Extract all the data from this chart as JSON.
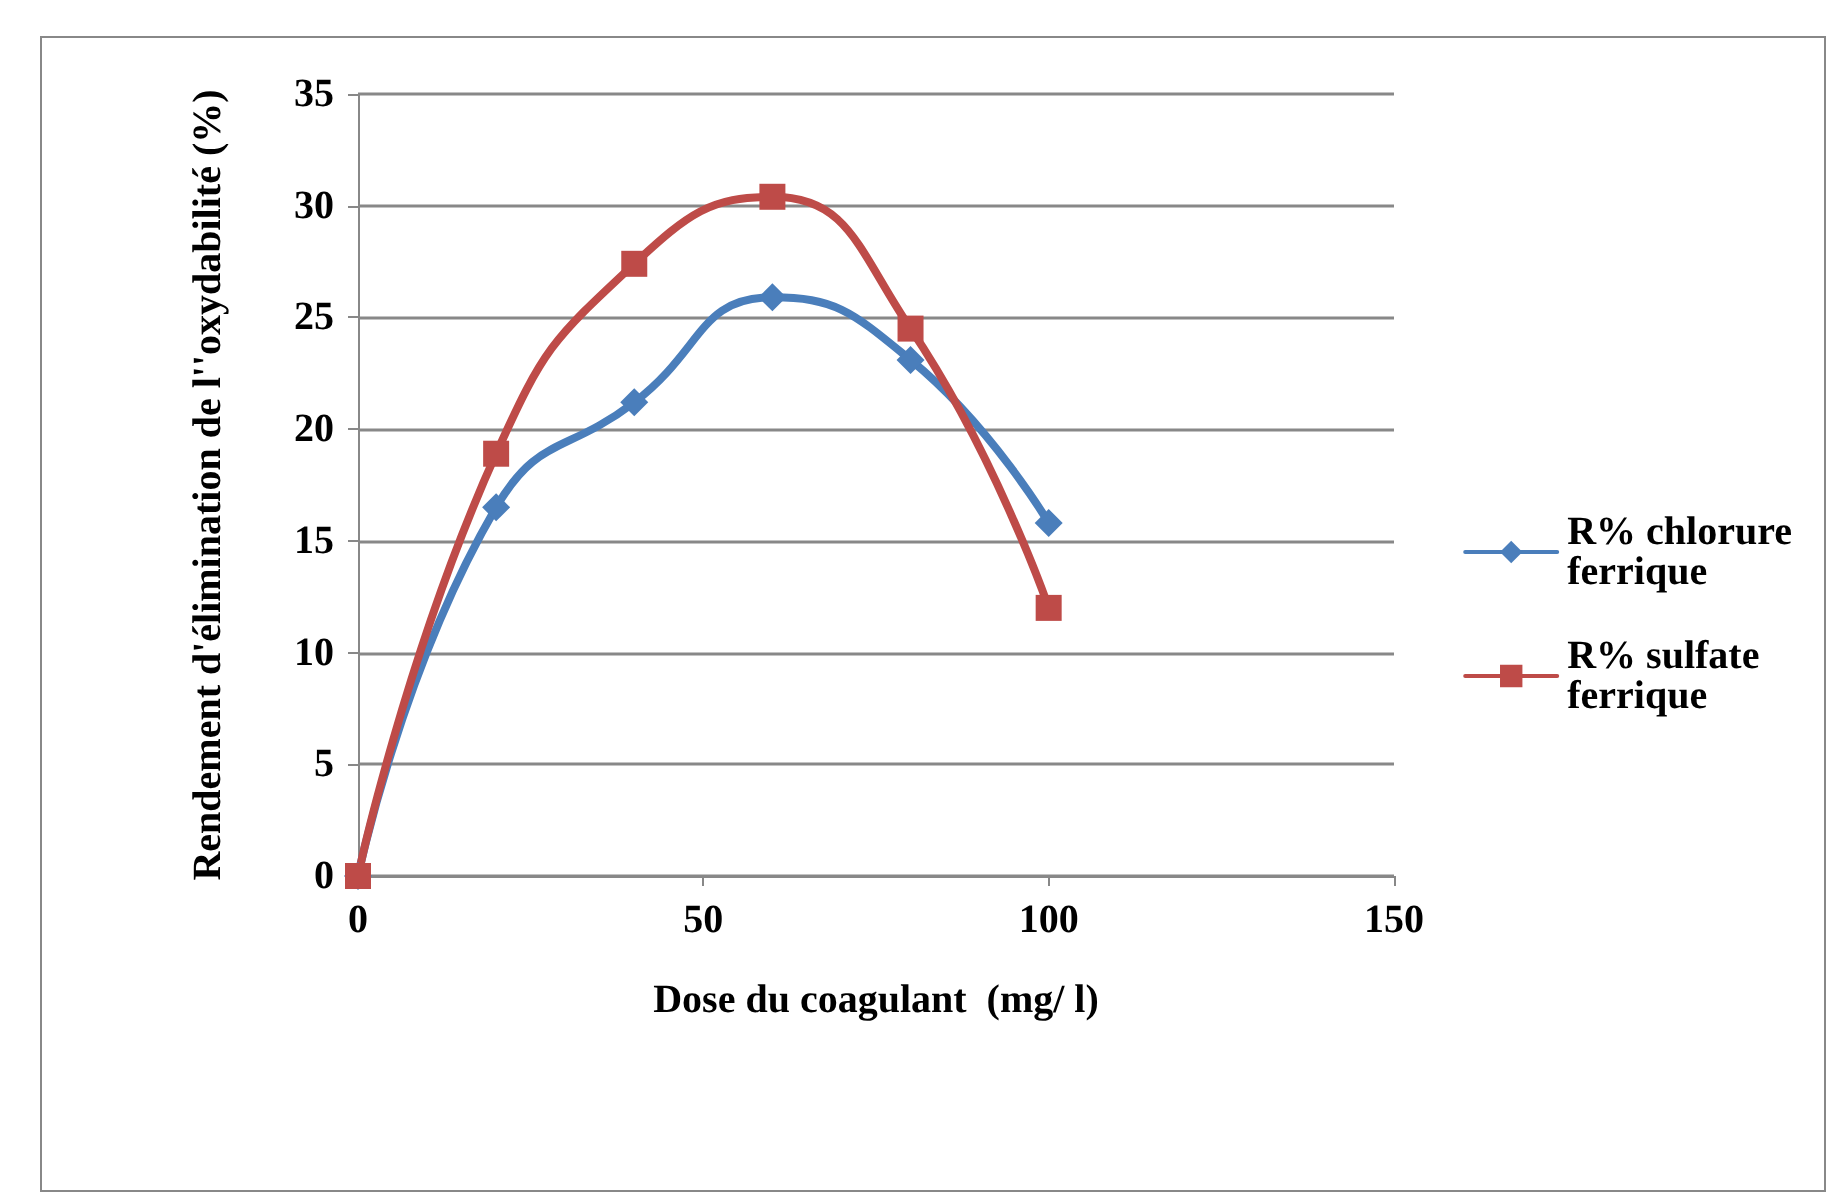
{
  "chart_data": {
    "type": "line",
    "xlabel": "Dose du coagulant  (mg/ l)",
    "ylabel": "Rendement d'élimination de l''oxydabilité (%)",
    "x": [
      0,
      20,
      40,
      60,
      80,
      100
    ],
    "series": [
      {
        "name": "R% chlorure ferrique",
        "color": "#4a7ebb",
        "marker": "diamond",
        "values": [
          0,
          16.5,
          21.2,
          25.9,
          23.1,
          15.8
        ]
      },
      {
        "name": "R% sulfate ferrique",
        "color": "#be4b48",
        "marker": "square",
        "values": [
          0,
          18.9,
          27.4,
          30.4,
          24.5,
          12.0
        ]
      }
    ],
    "xlim": [
      0,
      150
    ],
    "xticks": [
      0,
      50,
      100,
      150
    ],
    "ylim": [
      0,
      35
    ],
    "yticks": [
      0,
      5,
      10,
      15,
      20,
      25,
      30,
      35
    ],
    "grid": "y",
    "legend": "right",
    "line_style": "solid"
  }
}
